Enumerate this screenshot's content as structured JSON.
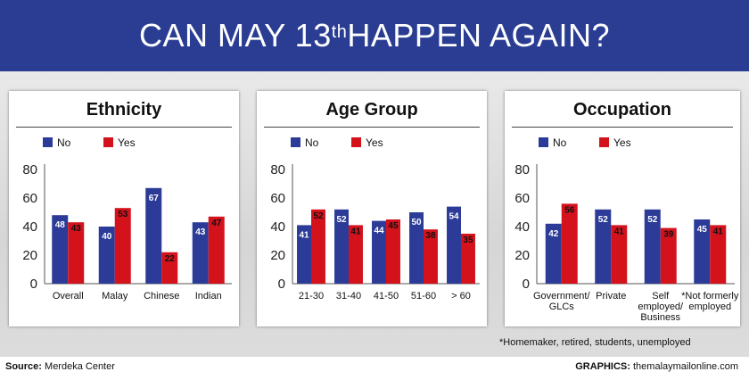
{
  "banner": {
    "title_pre": "CAN MAY 13",
    "title_sup": "th",
    "title_post": " HAPPEN AGAIN?"
  },
  "colors": {
    "no": "#2b3b97",
    "yes": "#d3121c",
    "banner": "#2a3d92"
  },
  "legend": {
    "no": "No",
    "yes": "Yes"
  },
  "footnote": "*Homemaker, retired, students, unemployed",
  "footer": {
    "source_label": "Source:",
    "source_value": " Merdeka Center",
    "credit_label": "GRAPHICS:",
    "credit_value": " themalaymailonline.com"
  },
  "chart_data": [
    {
      "type": "bar",
      "title": "Ethnicity",
      "categories": [
        [
          "Overall"
        ],
        [
          "Malay"
        ],
        [
          "Chinese"
        ],
        [
          "Indian"
        ]
      ],
      "series": [
        {
          "name": "No",
          "values": [
            48,
            40,
            67,
            43
          ]
        },
        {
          "name": "Yes",
          "values": [
            43,
            53,
            22,
            47
          ]
        }
      ],
      "ylim": [
        0,
        80
      ],
      "yticks": [
        0,
        20,
        40,
        60,
        80
      ],
      "legend": "top-left"
    },
    {
      "type": "bar",
      "title": "Age Group",
      "categories": [
        [
          "21-30"
        ],
        [
          "31-40"
        ],
        [
          "41-50"
        ],
        [
          "51-60"
        ],
        [
          "> 60"
        ]
      ],
      "series": [
        {
          "name": "No",
          "values": [
            41,
            52,
            44,
            50,
            54
          ]
        },
        {
          "name": "Yes",
          "values": [
            52,
            41,
            45,
            38,
            35
          ]
        }
      ],
      "ylim": [
        0,
        80
      ],
      "yticks": [
        0,
        20,
        40,
        60,
        80
      ],
      "legend": "top-left"
    },
    {
      "type": "bar",
      "title": "Occupation",
      "categories": [
        [
          "Government/",
          "GLCs"
        ],
        [
          "Private"
        ],
        [
          "Self",
          "employed/",
          "Business"
        ],
        [
          "*Not formerly",
          "employed"
        ]
      ],
      "series": [
        {
          "name": "No",
          "values": [
            42,
            52,
            52,
            45
          ]
        },
        {
          "name": "Yes",
          "values": [
            56,
            41,
            39,
            41
          ]
        }
      ],
      "ylim": [
        0,
        80
      ],
      "yticks": [
        0,
        20,
        40,
        60,
        80
      ],
      "legend": "top-left"
    }
  ]
}
